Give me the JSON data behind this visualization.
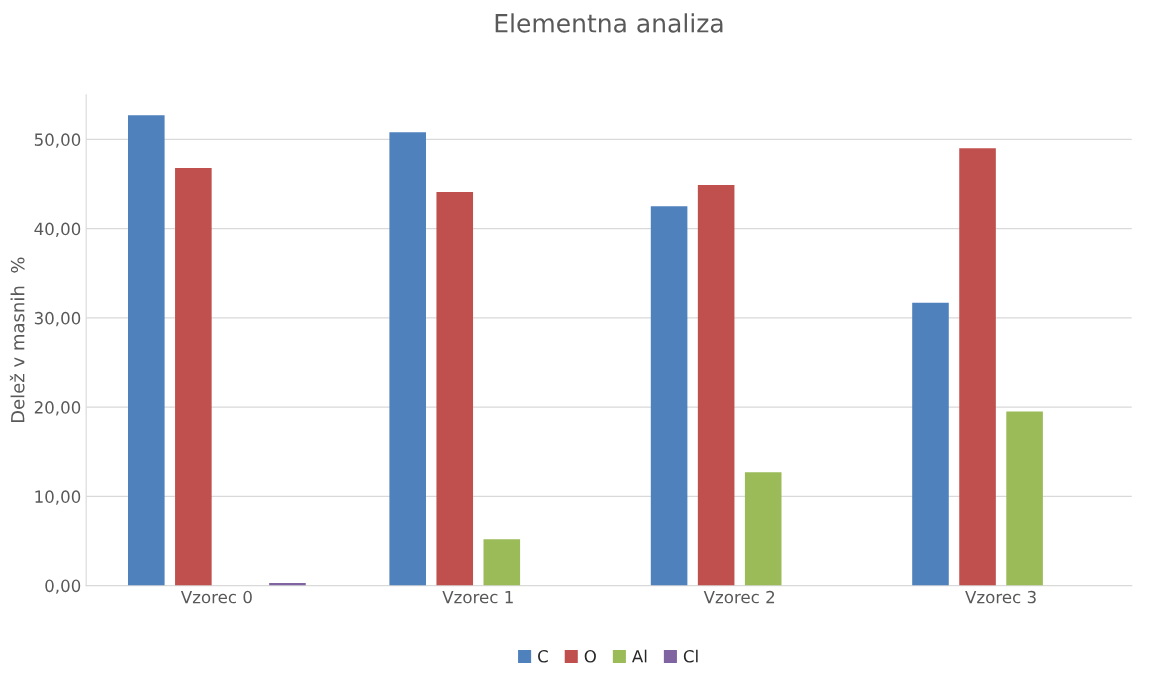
{
  "chart_data": {
    "type": "bar",
    "title": "Elementna analiza",
    "ylabel": "Delež v masnih  %",
    "categories": [
      "Vzorec 0",
      "Vzorec 1",
      "Vzorec 2",
      "Vzorec 3"
    ],
    "series": [
      {
        "name": "C",
        "color": "#4f81bd",
        "values": [
          52.7,
          50.8,
          42.5,
          31.7
        ]
      },
      {
        "name": "O",
        "color": "#c0504d",
        "values": [
          46.8,
          44.1,
          44.9,
          49.0
        ]
      },
      {
        "name": "Al",
        "color": "#9bbb59",
        "values": [
          null,
          5.2,
          12.7,
          19.5
        ]
      },
      {
        "name": "Cl",
        "color": "#8064a2",
        "values": [
          0.3,
          null,
          null,
          null
        ]
      }
    ],
    "ylim": [
      0,
      55
    ],
    "yticks": [
      {
        "value": 0,
        "label": "0,00"
      },
      {
        "value": 10,
        "label": "10,00"
      },
      {
        "value": 20,
        "label": "20,00"
      },
      {
        "value": 30,
        "label": "30,00"
      },
      {
        "value": 40,
        "label": "40,00"
      },
      {
        "value": 50,
        "label": "50,00"
      }
    ],
    "grid": "y",
    "legend": "bottom"
  }
}
